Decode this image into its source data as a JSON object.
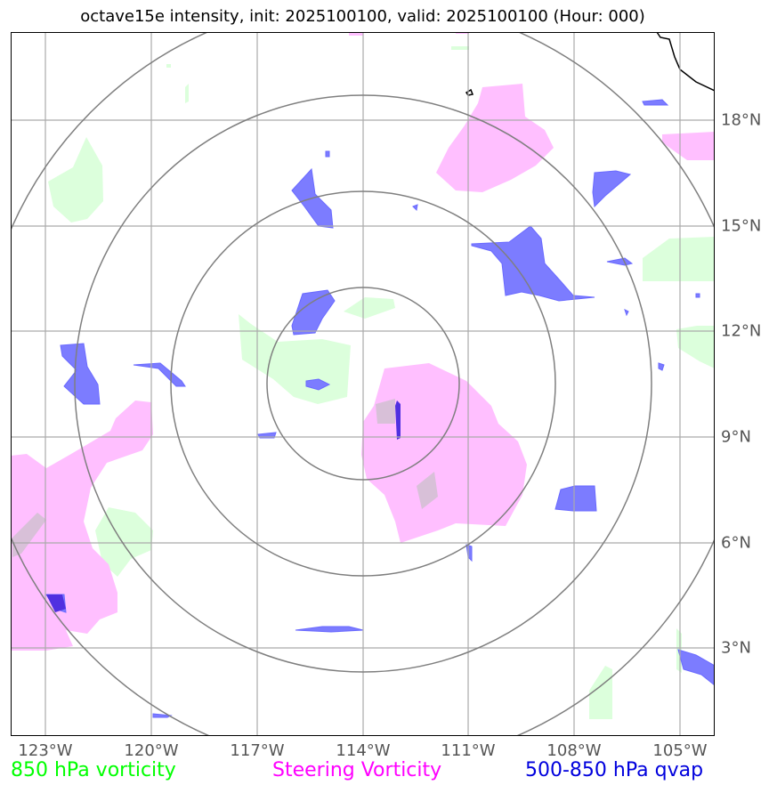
{
  "title": "octave15e intensity, init: 2025100100, valid: 2025100100 (Hour: 000)",
  "map": {
    "lon_labels": [
      "123°W",
      "120°W",
      "117°W",
      "114°W",
      "111°W",
      "108°W",
      "105°W"
    ],
    "lat_labels": [
      "18°N",
      "15°N",
      "12°N",
      "9°N",
      "6°N",
      "3°N"
    ],
    "center": {
      "lon": -114.0,
      "lat": 10.5
    },
    "extent": {
      "lon_min": -124.0,
      "lon_max": -104.0,
      "lat_min": 0.5,
      "lat_max": 20.5
    },
    "range_ring_count": 4
  },
  "legend": {
    "vorticity_850": {
      "label": "850 hPa vorticity",
      "color": "#00ff00"
    },
    "steering": {
      "label": "Steering Vorticity",
      "color": "#ff00ff"
    },
    "qvap": {
      "label": "500-850 hPa qvap",
      "color": "#0000dd"
    }
  },
  "fill_colors": {
    "vorticity_850": "#dcffdc",
    "steering": "#ffbfff",
    "qvap": "#7c7cff",
    "qvap_core": "#5030e0",
    "overlap": "#d8c0d8"
  }
}
